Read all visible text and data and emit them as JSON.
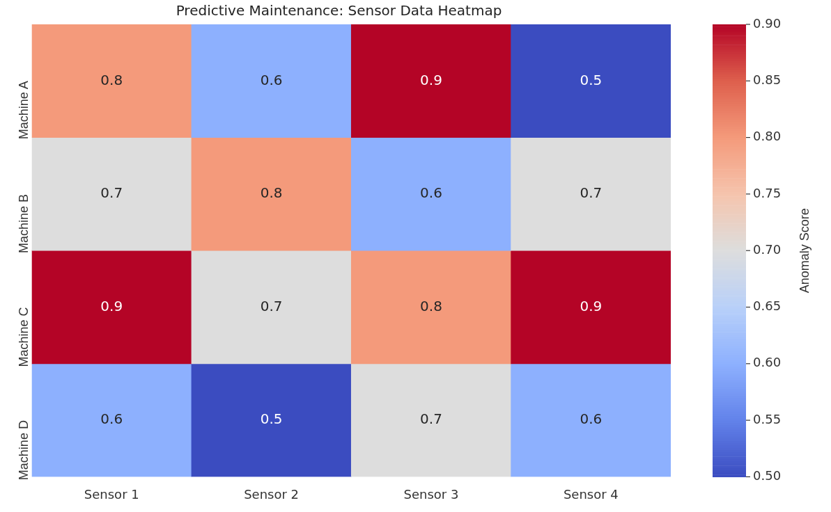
{
  "chart_data": {
    "type": "heatmap",
    "title": "Predictive Maintenance: Sensor Data Heatmap",
    "categories": [
      "Sensor 1",
      "Sensor 2",
      "Sensor 3",
      "Sensor 4"
    ],
    "y_categories": [
      "Machine A",
      "Machine B",
      "Machine C",
      "Machine D"
    ],
    "cells": [
      [
        0.8,
        0.6,
        0.9,
        0.5
      ],
      [
        0.7,
        0.8,
        0.6,
        0.7
      ],
      [
        0.9,
        0.7,
        0.8,
        0.9
      ],
      [
        0.6,
        0.5,
        0.7,
        0.6
      ]
    ],
    "clim": [
      0.5,
      0.9
    ],
    "cticks": [
      {
        "value": 0.5,
        "label": "0.50"
      },
      {
        "value": 0.55,
        "label": "0.55"
      },
      {
        "value": 0.6,
        "label": "0.60"
      },
      {
        "value": 0.65,
        "label": "0.65"
      },
      {
        "value": 0.7,
        "label": "0.70"
      },
      {
        "value": 0.75,
        "label": "0.75"
      },
      {
        "value": 0.8,
        "label": "0.80"
      },
      {
        "value": 0.85,
        "label": "0.85"
      },
      {
        "value": 0.9,
        "label": "0.90"
      }
    ],
    "clabel": "Anomaly Score",
    "data_labels": true
  }
}
